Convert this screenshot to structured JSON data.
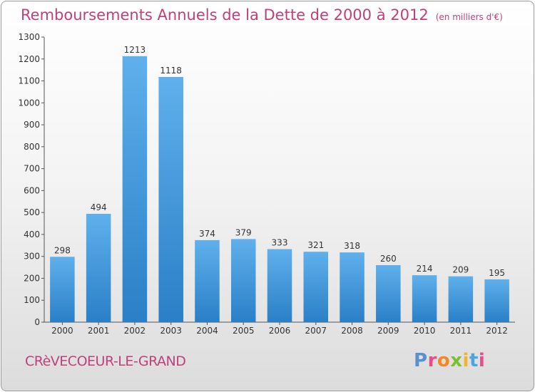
{
  "header": {
    "title": "Remboursements Annuels de la Dette de 2000 à 2012",
    "unit": "(en milliers d'€)"
  },
  "footer": {
    "commune": "CRèVECOEUR-LE-GRAND",
    "brand": "Proxiti"
  },
  "colors": {
    "title": "#c0407a",
    "bar_top": "#5fb0ec",
    "bar_bottom": "#2a7fc6",
    "brand_letters": [
      "#5a8fd0",
      "#e84c8a",
      "#f08a24",
      "#7cbf2f",
      "#f0b52a",
      "#4aa6dc",
      "#e84c8a"
    ]
  },
  "chart_data": {
    "type": "bar",
    "categories": [
      "2000",
      "2001",
      "2002",
      "2003",
      "2004",
      "2005",
      "2006",
      "2007",
      "2008",
      "2009",
      "2010",
      "2011",
      "2012"
    ],
    "values": [
      298,
      494,
      1213,
      1118,
      374,
      379,
      333,
      321,
      318,
      260,
      214,
      209,
      195
    ],
    "ylim": [
      0,
      1300
    ],
    "yticks": [
      0,
      100,
      200,
      300,
      400,
      500,
      600,
      700,
      800,
      900,
      1000,
      1100,
      1200,
      1300
    ],
    "grid": false,
    "legend": "none"
  }
}
